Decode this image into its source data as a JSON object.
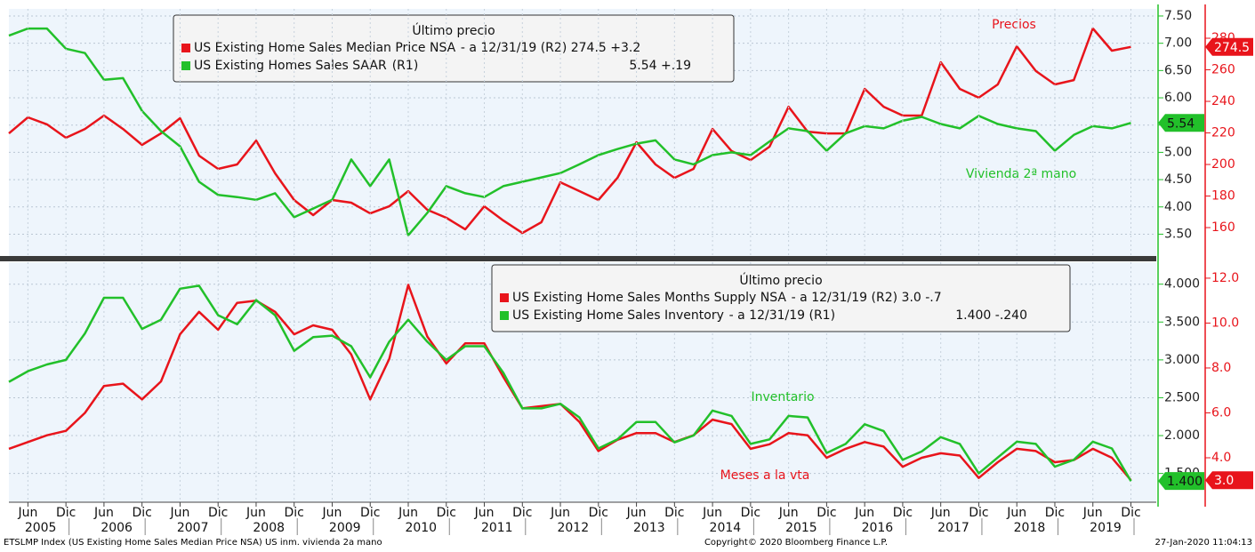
{
  "chart_data": [
    {
      "type": "line",
      "legend_title": "Último precio",
      "x": [
        "2005-03",
        "2005-06",
        "2005-09",
        "2005-12",
        "2006-03",
        "2006-06",
        "2006-09",
        "2006-12",
        "2007-03",
        "2007-06",
        "2007-09",
        "2007-12",
        "2008-03",
        "2008-06",
        "2008-09",
        "2008-12",
        "2009-03",
        "2009-06",
        "2009-09",
        "2009-12",
        "2010-03",
        "2010-06",
        "2010-09",
        "2010-12",
        "2011-03",
        "2011-06",
        "2011-09",
        "2011-12",
        "2012-03",
        "2012-06",
        "2012-09",
        "2012-12",
        "2013-03",
        "2013-06",
        "2013-09",
        "2013-12",
        "2014-03",
        "2014-06",
        "2014-09",
        "2014-12",
        "2015-03",
        "2015-06",
        "2015-09",
        "2015-12",
        "2016-03",
        "2016-06",
        "2016-09",
        "2016-12",
        "2017-03",
        "2017-06",
        "2017-09",
        "2017-12",
        "2018-03",
        "2018-06",
        "2018-09",
        "2018-12",
        "2019-03",
        "2019-06",
        "2019-09",
        "2019-12"
      ],
      "xlim": [
        "2005-03",
        "2020-04"
      ],
      "ylim": [
        3.1,
        7.63
      ],
      "yticks": [
        {
          "value": 3.5,
          "label": "3.50"
        },
        {
          "value": 4,
          "label": "4.00"
        },
        {
          "value": 4.5,
          "label": "4.50"
        },
        {
          "value": 5,
          "label": "5.00"
        },
        {
          "value": 5.5,
          "label": "5.50"
        },
        {
          "value": 6,
          "label": "6.00"
        },
        {
          "value": 6.5,
          "label": "6.50"
        },
        {
          "value": 7,
          "label": "7.00"
        },
        {
          "value": 7.5,
          "label": "7.50"
        }
      ],
      "y2lim": [
        142,
        298.6
      ],
      "y2ticks": [
        160,
        180,
        200,
        220,
        240,
        260,
        280
      ],
      "grid": true,
      "series": [
        {
          "name": "US Existing Home Sales Median Price NSA",
          "legend_detail": "-  a 12/31/19  (R2) 274.5 +3.2",
          "color": "#e8141b",
          "axis": "y2",
          "annotation": "Precios",
          "last_label": "274.5",
          "values": [
            219.7,
            229.9,
            225.4,
            216.9,
            222.5,
            231,
            222.5,
            212.4,
            219.7,
            229.3,
            205.6,
            197.2,
            200,
            215.2,
            194.4,
            177.5,
            167.9,
            177.5,
            175.8,
            169,
            173.5,
            183.1,
            171.3,
            166.2,
            158.9,
            173.5,
            164.5,
            156.6,
            163.4,
            188.7,
            183.1,
            177.5,
            191.5,
            214.1,
            200,
            191.5,
            197.2,
            222.5,
            208.5,
            202.8,
            211.3,
            236.6,
            220.8,
            219.7,
            219.7,
            247.9,
            236.6,
            231,
            231,
            264.8,
            247.9,
            242.3,
            250.7,
            274.9,
            259.2,
            250.7,
            253.5,
            286.2,
            272.1,
            274.5
          ]
        },
        {
          "name": "US Existing Homes Sales SAAR",
          "legend_detail": "(R1)",
          "legend_value": "5.54  +.19",
          "color": "#22c02a",
          "axis": "y",
          "annotation": "Vivienda 2ª mano",
          "last_label": "5.54",
          "values": [
            7.14,
            7.27,
            7.27,
            6.9,
            6.82,
            6.33,
            6.36,
            5.76,
            5.39,
            5.11,
            4.46,
            4.22,
            4.18,
            4.13,
            4.25,
            3.81,
            3.97,
            4.13,
            4.87,
            4.38,
            4.87,
            3.48,
            3.89,
            4.38,
            4.25,
            4.18,
            4.38,
            4.46,
            4.54,
            4.62,
            4.78,
            4.95,
            5.06,
            5.16,
            5.22,
            4.87,
            4.78,
            4.95,
            5,
            4.95,
            5.2,
            5.44,
            5.39,
            5.03,
            5.35,
            5.48,
            5.44,
            5.58,
            5.65,
            5.52,
            5.44,
            5.67,
            5.52,
            5.44,
            5.39,
            5.03,
            5.32,
            5.48,
            5.44,
            5.54
          ]
        }
      ]
    },
    {
      "type": "line",
      "legend_title": "Último precio",
      "x": [
        "2005-03",
        "2005-06",
        "2005-09",
        "2005-12",
        "2006-03",
        "2006-06",
        "2006-09",
        "2006-12",
        "2007-03",
        "2007-06",
        "2007-09",
        "2007-12",
        "2008-03",
        "2008-06",
        "2008-09",
        "2008-12",
        "2009-03",
        "2009-06",
        "2009-09",
        "2009-12",
        "2010-03",
        "2010-06",
        "2010-09",
        "2010-12",
        "2011-03",
        "2011-06",
        "2011-09",
        "2011-12",
        "2012-03",
        "2012-06",
        "2012-09",
        "2012-12",
        "2013-03",
        "2013-06",
        "2013-09",
        "2013-12",
        "2014-03",
        "2014-06",
        "2014-09",
        "2014-12",
        "2015-03",
        "2015-06",
        "2015-09",
        "2015-12",
        "2016-03",
        "2016-06",
        "2016-09",
        "2016-12",
        "2017-03",
        "2017-06",
        "2017-09",
        "2017-12",
        "2018-03",
        "2018-06",
        "2018-09",
        "2018-12",
        "2019-03",
        "2019-06",
        "2019-09",
        "2019-12"
      ],
      "xlim": [
        "2005-03",
        "2020-04"
      ],
      "ylim": [
        1.12,
        4.29
      ],
      "yticks": [
        {
          "value": 1.5,
          "label": "1.500"
        },
        {
          "value": 2,
          "label": "2.000"
        },
        {
          "value": 2.5,
          "label": "2.500"
        },
        {
          "value": 3,
          "label": "3.000"
        },
        {
          "value": 3.5,
          "label": "3.500"
        },
        {
          "value": 4,
          "label": "4.000"
        }
      ],
      "y2lim": [
        2.02,
        12.71
      ],
      "y2ticks": [
        {
          "value": 4,
          "label": "4.0"
        },
        {
          "value": 6,
          "label": "6.0"
        },
        {
          "value": 8,
          "label": "8.0"
        },
        {
          "value": 10,
          "label": "10.0"
        },
        {
          "value": 12,
          "label": "12.0"
        }
      ],
      "grid": true,
      "xticks": [
        {
          "value": "2005-06",
          "label": "Jun"
        },
        {
          "value": "2005-12",
          "label": "Dic"
        },
        {
          "value": "2006-06",
          "label": "Jun"
        },
        {
          "value": "2006-12",
          "label": "Dic"
        },
        {
          "value": "2007-06",
          "label": "Jun"
        },
        {
          "value": "2007-12",
          "label": "Dic"
        },
        {
          "value": "2008-06",
          "label": "Jun"
        },
        {
          "value": "2008-12",
          "label": "Dic"
        },
        {
          "value": "2009-06",
          "label": "Jun"
        },
        {
          "value": "2009-12",
          "label": "Dic"
        },
        {
          "value": "2010-06",
          "label": "Jun"
        },
        {
          "value": "2010-12",
          "label": "Dic"
        },
        {
          "value": "2011-06",
          "label": "Jun"
        },
        {
          "value": "2011-12",
          "label": "Dic"
        },
        {
          "value": "2012-06",
          "label": "Jun"
        },
        {
          "value": "2012-12",
          "label": "Dic"
        },
        {
          "value": "2013-06",
          "label": "Jun"
        },
        {
          "value": "2013-12",
          "label": "Dic"
        },
        {
          "value": "2014-06",
          "label": "Jun"
        },
        {
          "value": "2014-12",
          "label": "Dic"
        },
        {
          "value": "2015-06",
          "label": "Jun"
        },
        {
          "value": "2015-12",
          "label": "Dic"
        },
        {
          "value": "2016-06",
          "label": "Jun"
        },
        {
          "value": "2016-12",
          "label": "Dic"
        },
        {
          "value": "2017-06",
          "label": "Jun"
        },
        {
          "value": "2017-12",
          "label": "Dic"
        },
        {
          "value": "2018-06",
          "label": "Jun"
        },
        {
          "value": "2018-12",
          "label": "Dic"
        },
        {
          "value": "2019-06",
          "label": "Jun"
        },
        {
          "value": "2019-12",
          "label": "Dic"
        }
      ],
      "year_ticks": [
        "2005",
        "2006",
        "2007",
        "2008",
        "2009",
        "2010",
        "2011",
        "2012",
        "2013",
        "2014",
        "2015",
        "2016",
        "2017",
        "2018",
        "2019"
      ],
      "series": [
        {
          "name": "US Existing Home Sales Months Supply NSA",
          "legend_detail": "-  a 12/31/19  (R2) 3.0     -.7",
          "color": "#e8141b",
          "axis": "y2",
          "annotation": "Meses a la vta",
          "last_label": "3.0",
          "values": [
            4.4,
            4.7,
            5,
            5.2,
            6,
            7.2,
            7.3,
            6.6,
            7.4,
            9.5,
            10.5,
            9.7,
            10.9,
            11,
            10.5,
            9.5,
            9.9,
            9.7,
            8.6,
            6.6,
            8.4,
            11.7,
            9.4,
            8.2,
            9.1,
            9.1,
            7.6,
            6.2,
            6.3,
            6.4,
            5.6,
            4.3,
            4.8,
            5.1,
            5.1,
            4.7,
            5,
            5.7,
            5.5,
            4.4,
            4.6,
            5.1,
            5,
            4,
            4.4,
            4.7,
            4.5,
            3.6,
            4,
            4.2,
            4.1,
            3.1,
            3.8,
            4.4,
            4.3,
            3.8,
            3.9,
            4.4,
            4,
            3
          ]
        },
        {
          "name": "US Existing Home Sales Inventory",
          "legend_detail": "-  a 12/31/19  (R1)",
          "legend_value": "1.400  -.240",
          "color": "#22c02a",
          "axis": "y",
          "annotation": "Inventario",
          "last_label": "1.400",
          "values": [
            2.71,
            2.85,
            2.94,
            3,
            3.35,
            3.82,
            3.82,
            3.41,
            3.53,
            3.94,
            3.98,
            3.59,
            3.47,
            3.79,
            3.59,
            3.12,
            3.3,
            3.32,
            3.18,
            2.77,
            3.24,
            3.53,
            3.24,
            3,
            3.18,
            3.18,
            2.83,
            2.36,
            2.36,
            2.42,
            2.24,
            1.83,
            1.95,
            2.18,
            2.18,
            1.91,
            2,
            2.33,
            2.26,
            1.89,
            1.95,
            2.26,
            2.24,
            1.77,
            1.89,
            2.15,
            2.06,
            1.68,
            1.79,
            1.98,
            1.89,
            1.5,
            1.71,
            1.92,
            1.89,
            1.59,
            1.68,
            1.92,
            1.83,
            1.4
          ]
        }
      ]
    }
  ],
  "footer": {
    "left": "ETSLMP Index (US Existing Home Sales Median Price NSA) US inm. vivienda 2a mano",
    "center": "Copyright© 2020 Bloomberg Finance L.P.",
    "right": "27-Jan-2020 11:04:13"
  }
}
